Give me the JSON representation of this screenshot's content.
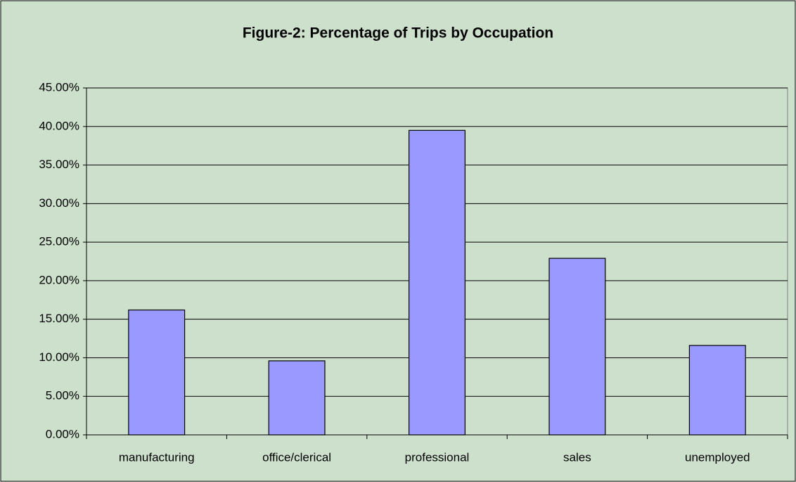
{
  "chart_data": {
    "type": "bar",
    "title": "Figure-2: Percentage of Trips  by Occupation",
    "categories": [
      "manufacturing",
      "office/clerical",
      "professional",
      "sales",
      "unemployed"
    ],
    "values": [
      16.2,
      9.6,
      39.5,
      22.9,
      11.6
    ],
    "color": "#9999ff",
    "ylim": [
      0,
      45
    ],
    "yticks": [
      {
        "value": 0,
        "label": "0.00%"
      },
      {
        "value": 5,
        "label": "5.00%"
      },
      {
        "value": 10,
        "label": "10.00%"
      },
      {
        "value": 15,
        "label": "15.00%"
      },
      {
        "value": 20,
        "label": "20.00%"
      },
      {
        "value": 25,
        "label": "25.00%"
      },
      {
        "value": 30,
        "label": "30.00%"
      },
      {
        "value": 35,
        "label": "35.00%"
      },
      {
        "value": 40,
        "label": "40.00%"
      },
      {
        "value": 45,
        "label": "45.00%"
      }
    ],
    "grid": true
  }
}
